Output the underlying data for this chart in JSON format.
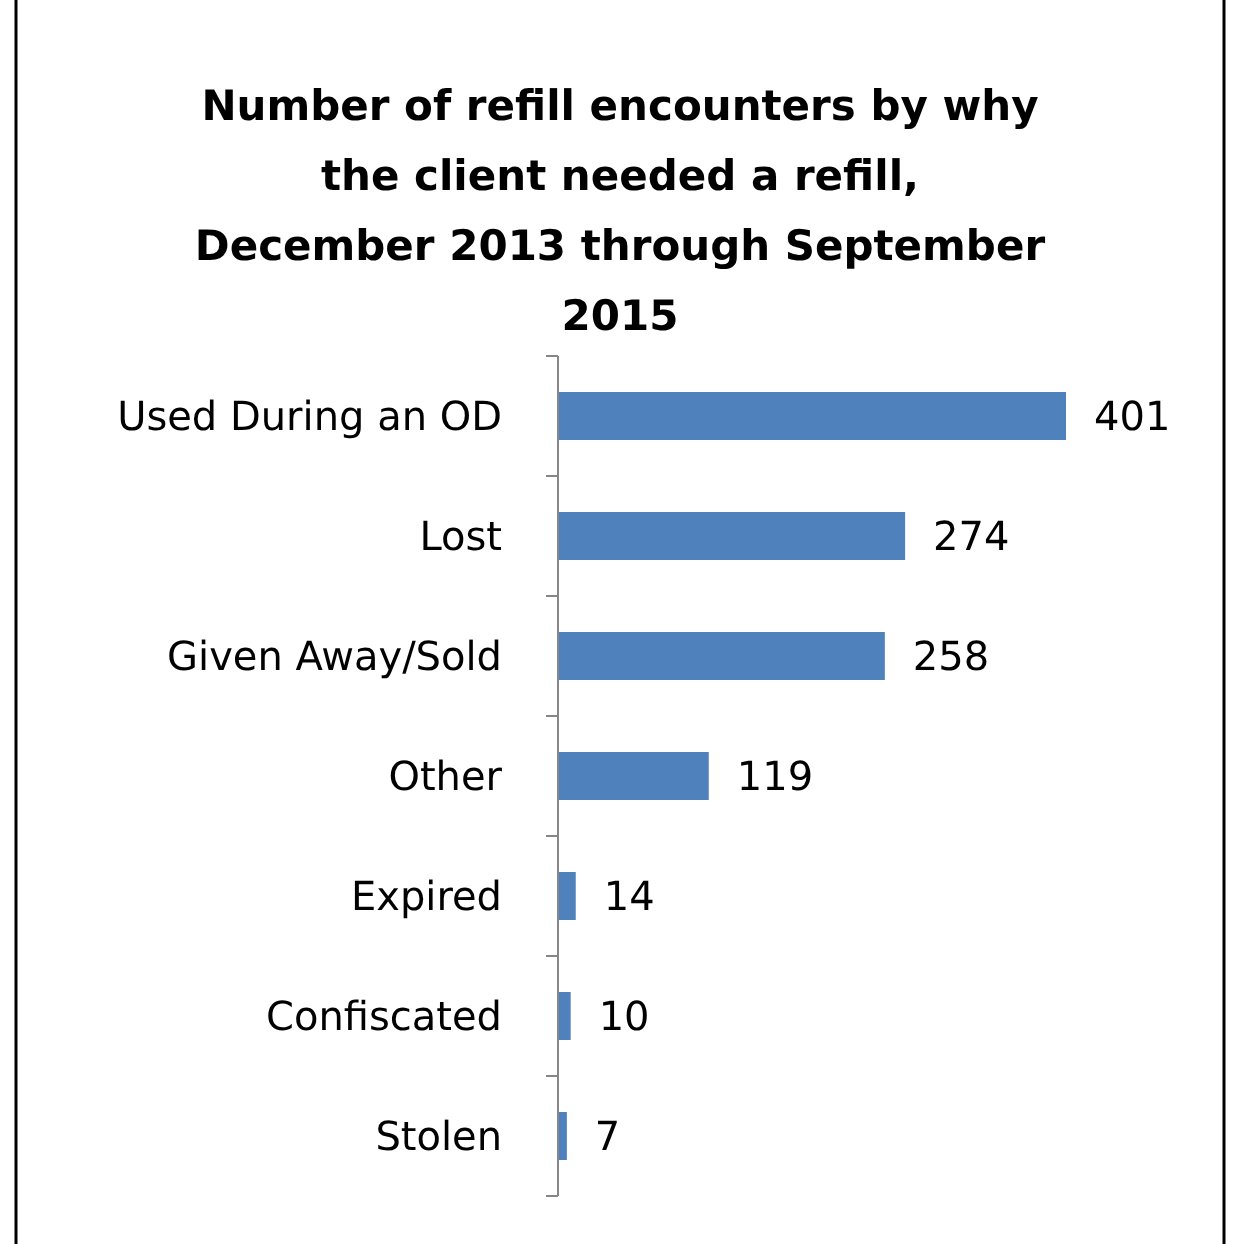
{
  "chart_data": {
    "type": "bar",
    "orientation": "horizontal",
    "title": "Number of refill encounters by why the client needed a refill, December 2013 through September 2015",
    "categories": [
      "Used During an OD",
      "Lost",
      "Given Away/Sold",
      "Other",
      "Expired",
      "Confiscated",
      "Stolen"
    ],
    "values": [
      401,
      274,
      258,
      119,
      14,
      10,
      7
    ],
    "color": "#4f81bd",
    "data_labels": true
  }
}
